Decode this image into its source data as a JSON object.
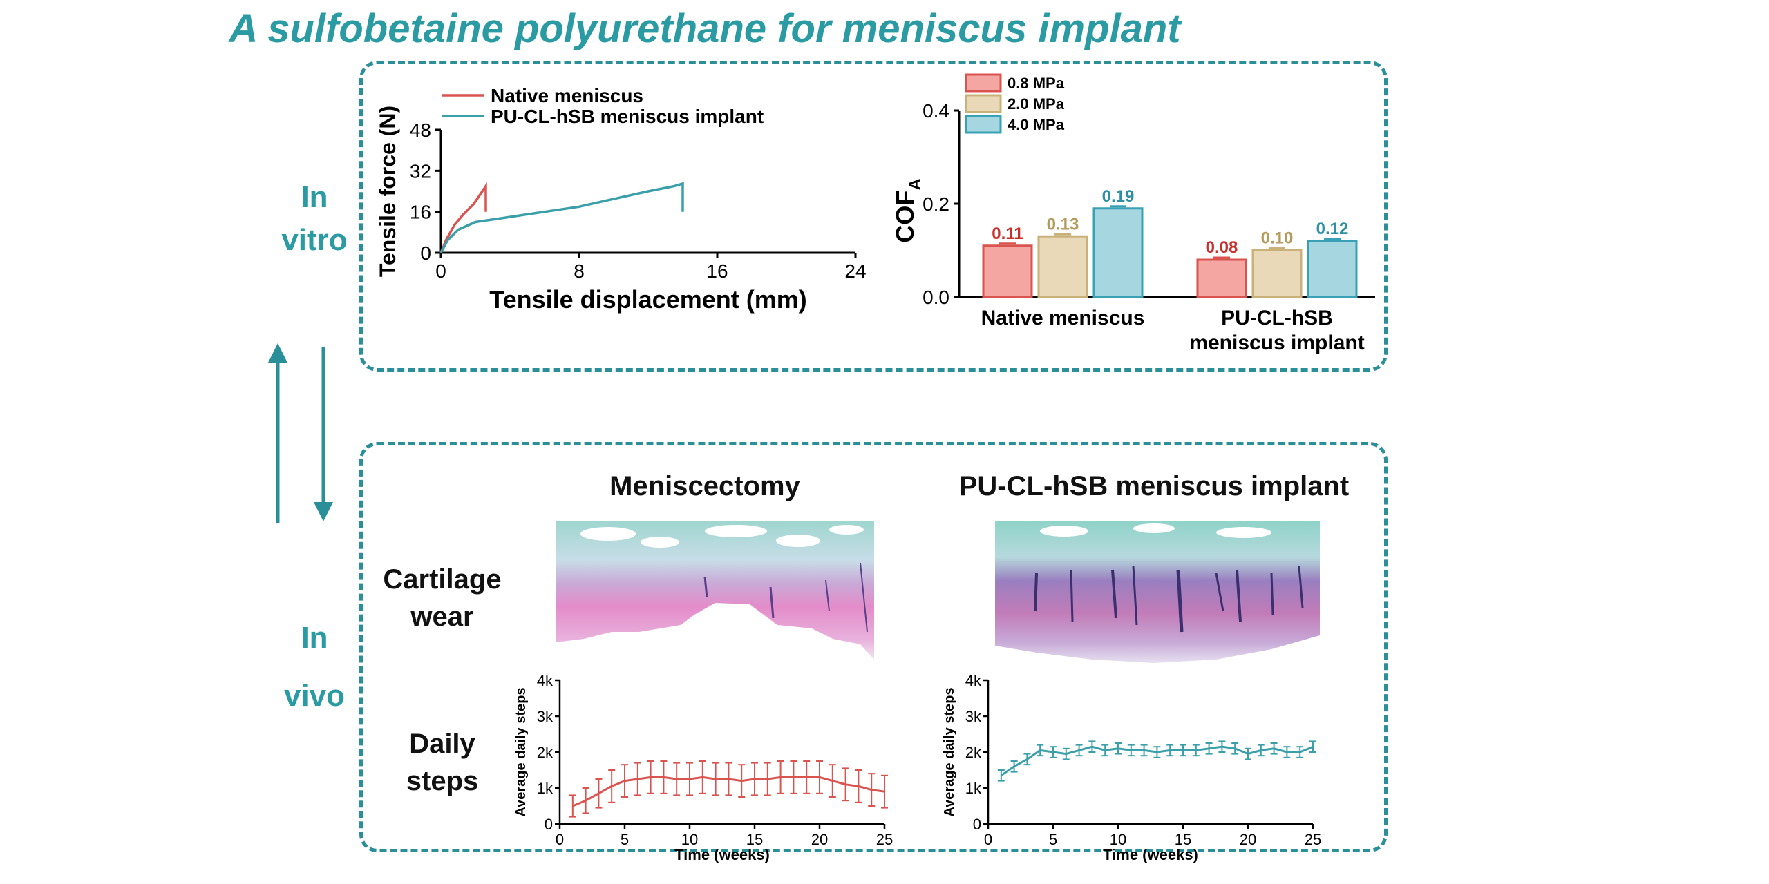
{
  "title": "A sulfobetaine polyurethane for meniscus implant",
  "side_labels": {
    "in_vitro": [
      "In",
      "vitro"
    ],
    "in_vivo": [
      "In",
      "vivo"
    ]
  },
  "row_labels": {
    "cartilage": [
      "Cartilage",
      "wear"
    ],
    "steps": [
      "Daily",
      "steps"
    ]
  },
  "image_titles": {
    "left": "Meniscectomy",
    "right": "PU-CL-hSB meniscus implant"
  },
  "colors": {
    "teal": "#2a9aa3",
    "red": "#d9534f",
    "beige": "#c9b27a",
    "blue": "#3aa0b5"
  },
  "chart_data": [
    {
      "type": "line",
      "xlabel": "Tensile displacement (mm)",
      "ylabel": "Tensile force (N)",
      "xlim": [
        0,
        24
      ],
      "ylim": [
        0,
        48
      ],
      "xticks": [
        "0",
        "8",
        "16",
        "24"
      ],
      "yticks": [
        "0",
        "16",
        "32",
        "48"
      ],
      "series": [
        {
          "name": "Native meniscus",
          "color": "#d9534f",
          "points": [
            [
              0,
              0
            ],
            [
              0.3,
              5
            ],
            [
              0.8,
              11
            ],
            [
              1.3,
              15
            ],
            [
              1.9,
              19
            ],
            [
              2.4,
              24
            ],
            [
              2.6,
              26
            ],
            [
              2.6,
              16
            ]
          ]
        },
        {
          "name": "PU-CL-hSB meniscus implant",
          "color": "#3a9fa8",
          "points": [
            [
              0,
              0
            ],
            [
              0.4,
              5
            ],
            [
              1,
              9
            ],
            [
              2,
              12
            ],
            [
              4,
              14
            ],
            [
              6,
              16
            ],
            [
              8,
              18
            ],
            [
              10,
              21
            ],
            [
              12,
              24
            ],
            [
              13.5,
              26
            ],
            [
              14,
              27
            ],
            [
              14,
              22
            ],
            [
              14,
              16
            ]
          ]
        }
      ]
    },
    {
      "type": "bar",
      "ylabel": "COF",
      "ylabel_sub": "A",
      "ylim": [
        0,
        0.4
      ],
      "yticks": [
        "0.0",
        "0.2",
        "0.4"
      ],
      "categories": [
        "Native meniscus",
        "PU-CL-hSB meniscus implant"
      ],
      "category_lines": [
        [
          "Native meniscus"
        ],
        [
          "PU-CL-hSB",
          "meniscus implant"
        ]
      ],
      "series": [
        {
          "name": "0.8 MPa",
          "fill": "#f4a6a3",
          "stroke": "#d9534f",
          "text_color": "#c9302c",
          "values": [
            0.11,
            0.08
          ],
          "labels": [
            "0.11",
            "0.08"
          ]
        },
        {
          "name": "2.0 MPa",
          "fill": "#ead9b8",
          "stroke": "#c9b27a",
          "text_color": "#b39b5c",
          "values": [
            0.13,
            0.1
          ],
          "labels": [
            "0.13",
            "0.10"
          ]
        },
        {
          "name": "4.0 MPa",
          "fill": "#a6d6e0",
          "stroke": "#3aa0b5",
          "text_color": "#2e8fa4",
          "values": [
            0.19,
            0.12
          ],
          "labels": [
            "0.19",
            "0.12"
          ]
        }
      ]
    },
    {
      "type": "line",
      "xlabel": "Time (weeks)",
      "ylabel": "Average daily steps",
      "xlim": [
        0,
        25
      ],
      "ylim": [
        0,
        4000
      ],
      "xticks": [
        "0",
        "5",
        "10",
        "15",
        "20",
        "25"
      ],
      "yticks": [
        "0",
        "1k",
        "2k",
        "3k",
        "4k"
      ],
      "series": [
        {
          "name": "Meniscectomy",
          "color": "#d9534f",
          "x": [
            1,
            2,
            3,
            4,
            5,
            6,
            7,
            8,
            9,
            10,
            11,
            12,
            13,
            14,
            15,
            16,
            17,
            18,
            19,
            20,
            21,
            22,
            23,
            24,
            25
          ],
          "y": [
            500,
            650,
            850,
            1050,
            1200,
            1250,
            1300,
            1300,
            1250,
            1250,
            1300,
            1250,
            1250,
            1200,
            1250,
            1250,
            1300,
            1300,
            1300,
            1300,
            1200,
            1100,
            1050,
            950,
            900
          ],
          "err": [
            300,
            350,
            400,
            450,
            450,
            450,
            450,
            450,
            450,
            450,
            450,
            450,
            450,
            450,
            450,
            450,
            450,
            450,
            450,
            450,
            450,
            450,
            450,
            450,
            450
          ]
        }
      ]
    },
    {
      "type": "line",
      "xlabel": "Time (weeks)",
      "ylabel": "Average daily steps",
      "xlim": [
        0,
        25
      ],
      "ylim": [
        0,
        4000
      ],
      "xticks": [
        "0",
        "5",
        "10",
        "15",
        "20",
        "25"
      ],
      "yticks": [
        "0",
        "1k",
        "2k",
        "3k",
        "4k"
      ],
      "series": [
        {
          "name": "PU-CL-hSB meniscus implant",
          "color": "#3a9fa8",
          "x": [
            1,
            2,
            3,
            4,
            5,
            6,
            7,
            8,
            9,
            10,
            11,
            12,
            13,
            14,
            15,
            16,
            17,
            18,
            19,
            20,
            21,
            22,
            23,
            24,
            25
          ],
          "y": [
            1350,
            1600,
            1800,
            2050,
            2000,
            1950,
            2050,
            2150,
            2050,
            2100,
            2050,
            2050,
            2000,
            2050,
            2050,
            2050,
            2100,
            2150,
            2100,
            1950,
            2050,
            2100,
            2000,
            2000,
            2150
          ],
          "err": [
            150,
            150,
            150,
            150,
            150,
            150,
            150,
            150,
            150,
            150,
            150,
            150,
            150,
            150,
            150,
            150,
            150,
            150,
            150,
            150,
            150,
            150,
            150,
            150,
            150
          ]
        }
      ]
    }
  ]
}
